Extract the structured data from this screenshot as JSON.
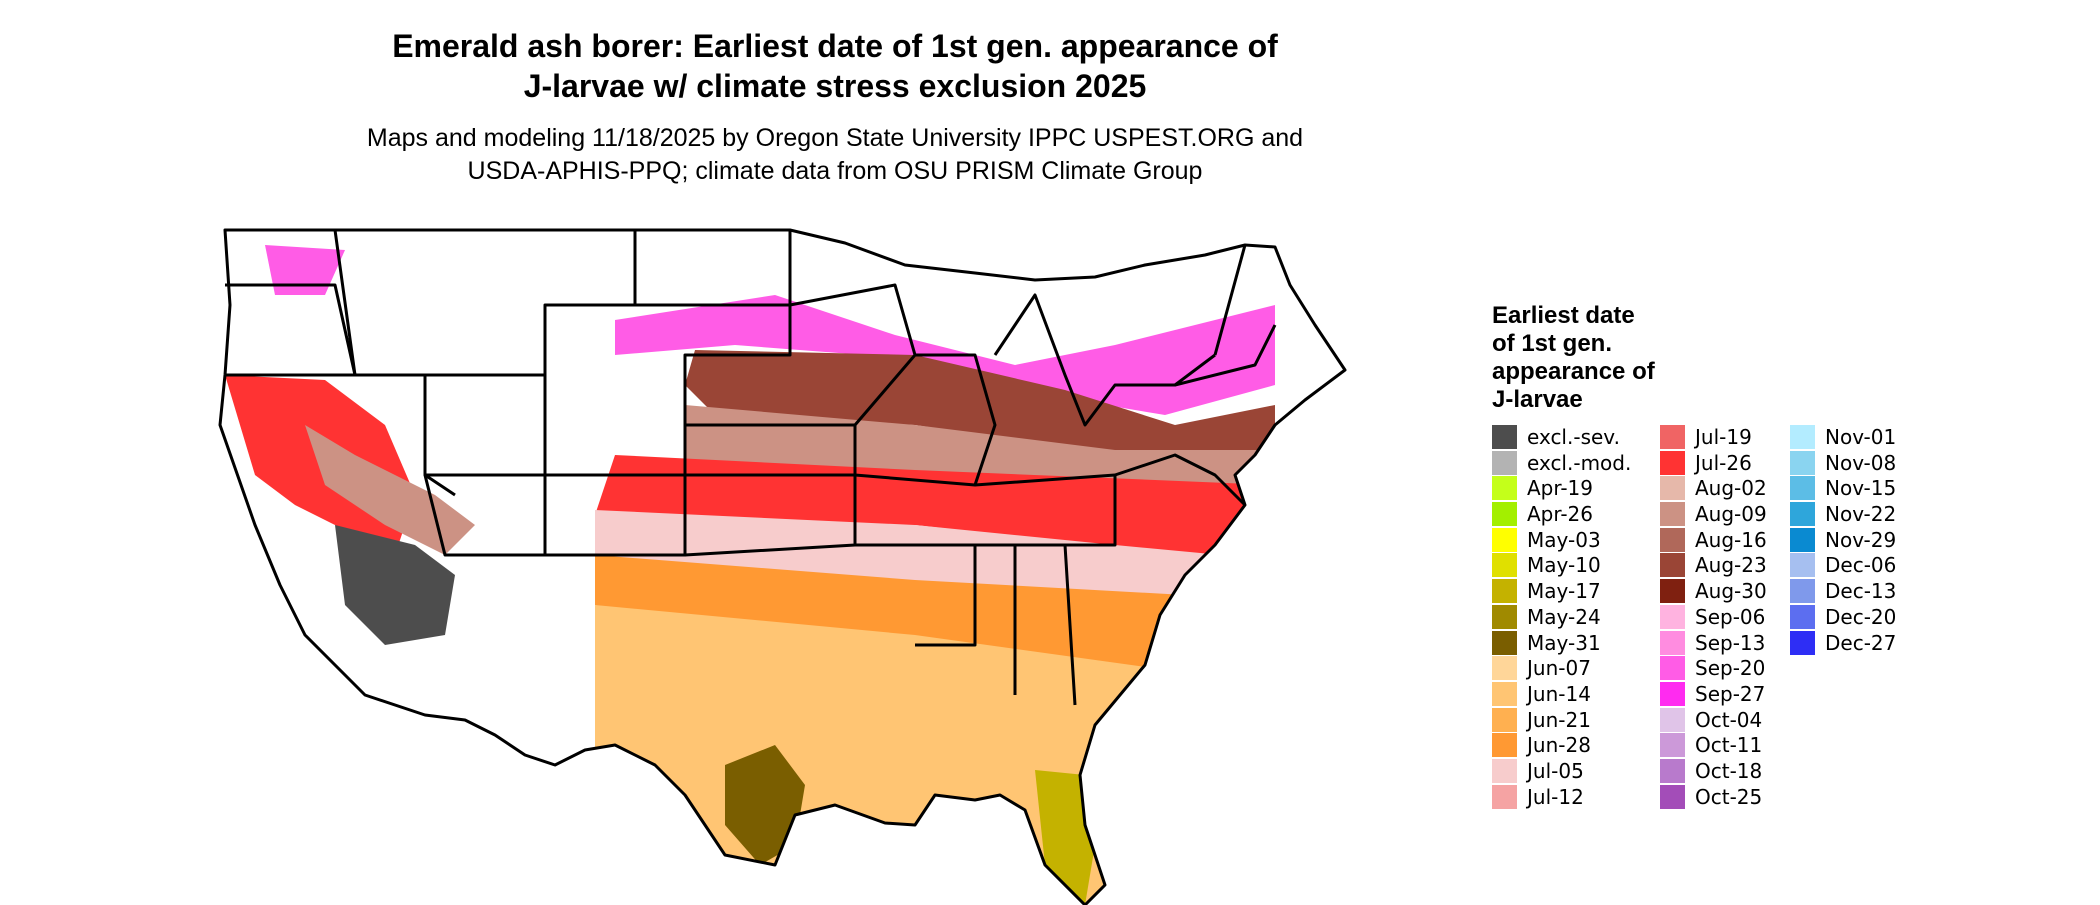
{
  "title_lines": [
    "Emerald ash borer: Earliest date of 1st gen. appearance of",
    "J-larvae w/ climate stress exclusion 2025"
  ],
  "subtitle_lines": [
    "Maps and modeling 11/18/2025 by Oregon State University IPPC USPEST.ORG and",
    "USDA-APHIS-PPQ; climate data from OSU PRISM Climate Group"
  ],
  "legend": {
    "title_lines": [
      "Earliest date",
      "of 1st gen.",
      "appearance of",
      "J-larvae"
    ],
    "columns": [
      [
        {
          "label": "excl.-sev.",
          "color": "#4d4d4d"
        },
        {
          "label": "excl.-mod.",
          "color": "#b3b3b3"
        },
        {
          "label": "Apr-19",
          "color": "#c4ff1a"
        },
        {
          "label": "Apr-26",
          "color": "#a3ef00"
        },
        {
          "label": "May-03",
          "color": "#ffff00"
        },
        {
          "label": "May-10",
          "color": "#e0e000"
        },
        {
          "label": "May-17",
          "color": "#c4b200"
        },
        {
          "label": "May-24",
          "color": "#a08a00"
        },
        {
          "label": "May-31",
          "color": "#7a5e00"
        },
        {
          "label": "Jun-07",
          "color": "#ffd699"
        },
        {
          "label": "Jun-14",
          "color": "#ffc573"
        },
        {
          "label": "Jun-21",
          "color": "#ffb050"
        },
        {
          "label": "Jun-28",
          "color": "#ff9933"
        },
        {
          "label": "Jul-05",
          "color": "#f7cccc"
        },
        {
          "label": "Jul-12",
          "color": "#f5a3a3"
        }
      ],
      [
        {
          "label": "Jul-19",
          "color": "#f06464"
        },
        {
          "label": "Jul-26",
          "color": "#ff3333"
        },
        {
          "label": "Aug-02",
          "color": "#e6b8aa"
        },
        {
          "label": "Aug-09",
          "color": "#cc9284"
        },
        {
          "label": "Aug-16",
          "color": "#b0685a"
        },
        {
          "label": "Aug-23",
          "color": "#9a4536"
        },
        {
          "label": "Aug-30",
          "color": "#7f2010"
        },
        {
          "label": "Sep-06",
          "color": "#ffb3e0"
        },
        {
          "label": "Sep-13",
          "color": "#ff8ce0"
        },
        {
          "label": "Sep-20",
          "color": "#ff5ce6"
        },
        {
          "label": "Sep-27",
          "color": "#ff2bf0"
        },
        {
          "label": "Oct-04",
          "color": "#e0c4e8"
        },
        {
          "label": "Oct-11",
          "color": "#cc99d9"
        },
        {
          "label": "Oct-18",
          "color": "#b87acc"
        },
        {
          "label": "Oct-25",
          "color": "#a34db8"
        }
      ],
      [
        {
          "label": "Nov-01",
          "color": "#b3ecff"
        },
        {
          "label": "Nov-08",
          "color": "#8ad4f0"
        },
        {
          "label": "Nov-15",
          "color": "#5cbde6"
        },
        {
          "label": "Nov-22",
          "color": "#2ea6db"
        },
        {
          "label": "Nov-29",
          "color": "#0a8ad1"
        },
        {
          "label": "Dec-06",
          "color": "#a6bff0"
        },
        {
          "label": "Dec-13",
          "color": "#7f99eb"
        },
        {
          "label": "Dec-20",
          "color": "#5c6ef0"
        },
        {
          "label": "Dec-27",
          "color": "#2e2ef5"
        }
      ]
    ]
  },
  "map": {
    "colors": {
      "state_border": "#000000",
      "no_risk": "#ffffff",
      "north_fringe": "#ff5ce6",
      "midwest_band": "#9a4536",
      "central_band": "#cc9284",
      "red_band": "#ff3333",
      "pink_band": "#f7cccc",
      "orange_band": "#ff9933",
      "gulf_band": "#ffc573",
      "coastal_tip": "#7a5e00",
      "florida_tip": "#c4b200",
      "excluded": "#4d4d4d"
    }
  }
}
